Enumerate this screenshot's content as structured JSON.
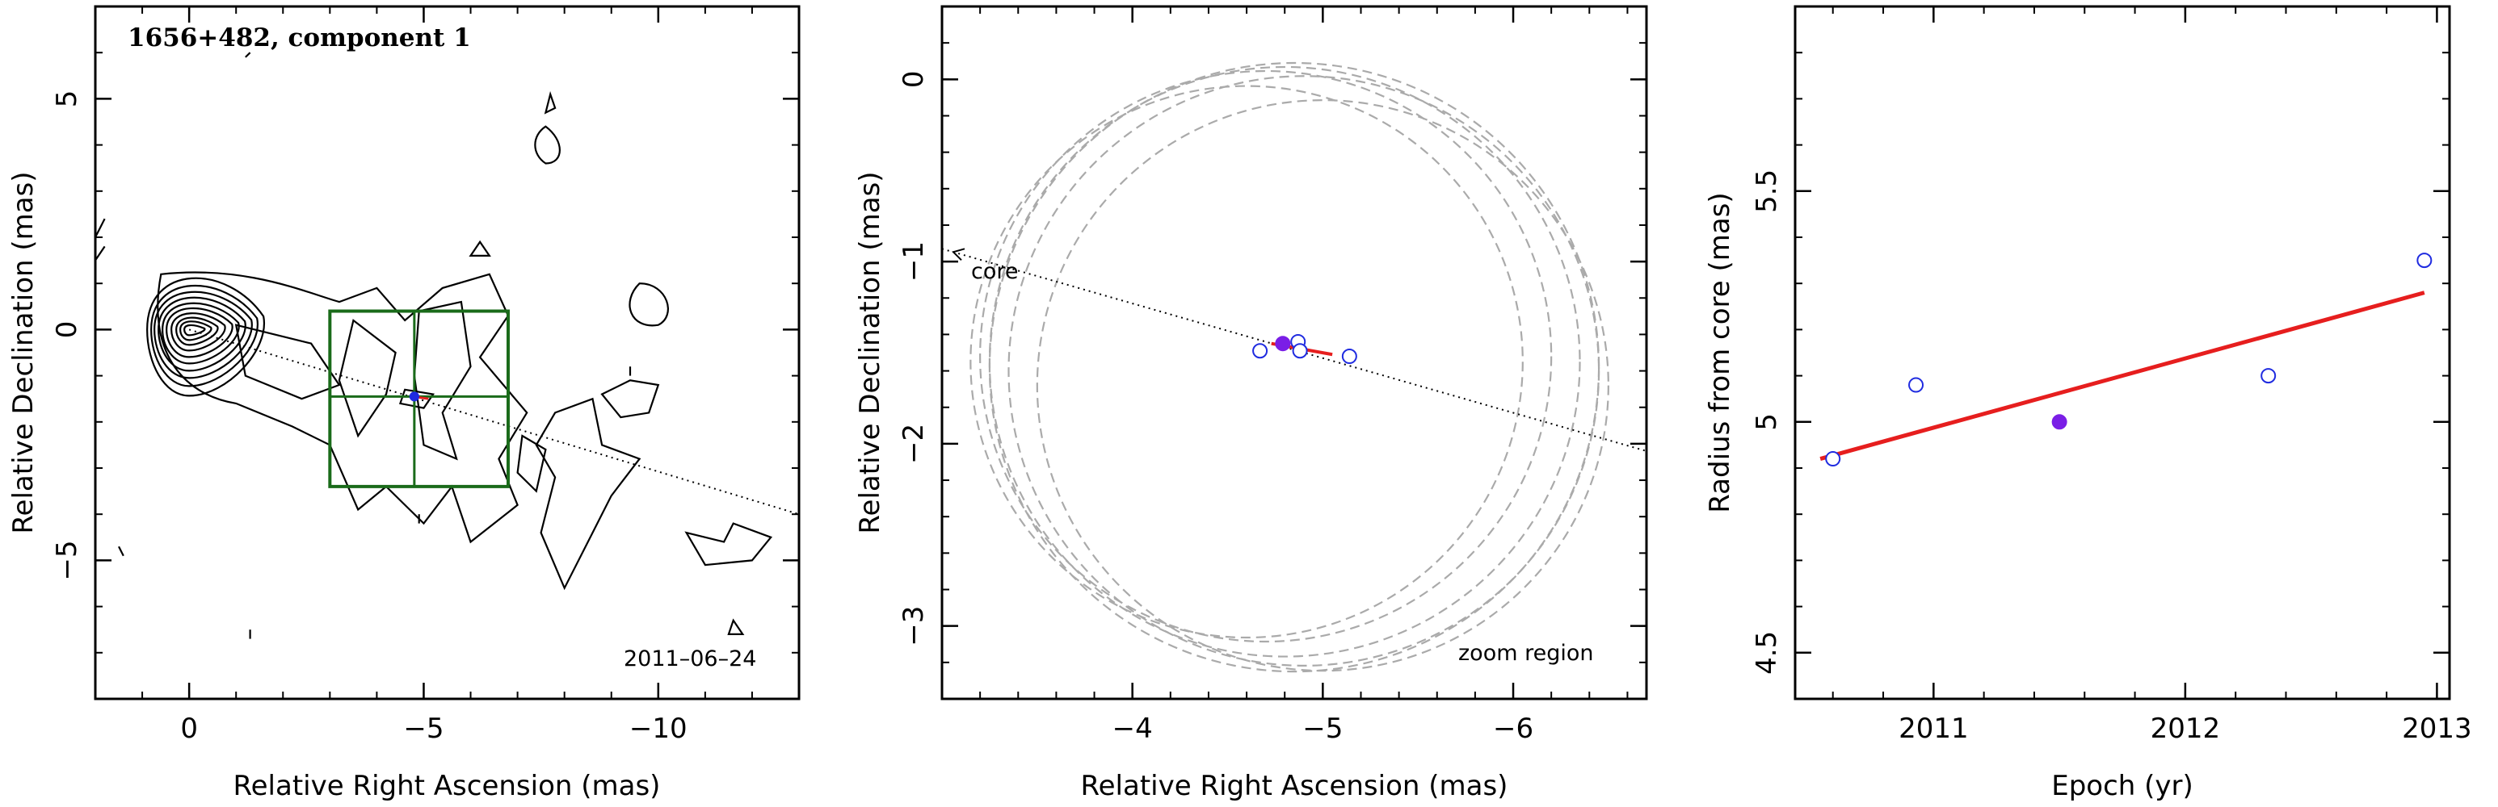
{
  "colors": {
    "contour": "#000000",
    "box": "#1a6b1a",
    "open_marker": "#1f2be0",
    "filled_marker": "#7a1ee6",
    "fit_line": "#e61e1e",
    "circle": "#aaaaaa"
  },
  "chart_data": [
    {
      "type": "contour",
      "title": "1656+482, component 1",
      "annotation": "2011–06–24",
      "xlabel": "Relative Right Ascension (mas)",
      "ylabel": "Relative Declination (mas)",
      "xlim": [
        2,
        -13
      ],
      "ylim": [
        -8,
        7
      ],
      "x_ticks": [
        0,
        -5,
        -10
      ],
      "x_tick_labels": [
        "0",
        "−5",
        "−10"
      ],
      "y_ticks": [
        5,
        0,
        -5
      ],
      "y_tick_labels": [
        "5",
        "0",
        "−5"
      ],
      "zoom_box": {
        "x": [
          -3.0,
          -6.8
        ],
        "y": [
          0.4,
          -3.4
        ]
      },
      "zoom_box_cross": {
        "x": -4.8,
        "y": -1.45
      },
      "direction_line": {
        "from": [
          0,
          0
        ],
        "to": [
          -13,
          -4.0
        ]
      },
      "component": {
        "x": -4.8,
        "y": -1.45,
        "fit_x": [
          -4.7,
          -5.1
        ],
        "fit_y": [
          -1.44,
          -1.5
        ]
      }
    },
    {
      "type": "scatter",
      "annotation_core": "core",
      "annotation_zoom": "zoom region",
      "xlabel": "Relative Right Ascension (mas)",
      "ylabel": "Relative Declination (mas)",
      "xlim": [
        -3.0,
        -6.7
      ],
      "ylim": [
        -3.4,
        0.4
      ],
      "x_ticks": [
        -4,
        -5,
        -6
      ],
      "x_tick_labels": [
        "−4",
        "−5",
        "−6"
      ],
      "y_ticks": [
        0,
        -1,
        -2,
        -3
      ],
      "y_tick_labels": [
        "0",
        "−1",
        "−2",
        "−3"
      ],
      "direction_line": {
        "from": [
          -3.0,
          -0.93
        ],
        "to": [
          -6.7,
          -2.04
        ]
      },
      "open_points": {
        "x": [
          -4.67,
          -4.87,
          -4.88,
          -5.14
        ],
        "y": [
          -1.49,
          -1.44,
          -1.49,
          -1.52
        ]
      },
      "filled_points": {
        "x": [
          -4.79
        ],
        "y": [
          -1.45
        ]
      },
      "fit_line": {
        "x": [
          -4.73,
          -5.05
        ],
        "y": [
          -1.45,
          -1.51
        ]
      },
      "circles": [
        {
          "cx": -4.6,
          "cy": -1.55,
          "r": 1.45
        },
        {
          "cx": -4.7,
          "cy": -1.52,
          "r": 1.5
        },
        {
          "cx": -4.8,
          "cy": -1.55,
          "r": 1.55
        },
        {
          "cx": -4.85,
          "cy": -1.58,
          "r": 1.6
        },
        {
          "cx": -4.9,
          "cy": -1.6,
          "r": 1.55
        },
        {
          "cx": -5.0,
          "cy": -1.68,
          "r": 1.5
        }
      ]
    },
    {
      "type": "scatter",
      "xlabel": "Epoch (yr)",
      "ylabel": "Radius from core (mas)",
      "xlim": [
        2010.45,
        2013.05
      ],
      "ylim": [
        4.4,
        5.9
      ],
      "x_ticks": [
        2011,
        2012,
        2013
      ],
      "x_tick_labels": [
        "2011",
        "2012",
        "2013"
      ],
      "y_ticks": [
        4.5,
        5,
        5.5
      ],
      "y_tick_labels": [
        "4.5",
        "5",
        "5.5"
      ],
      "open_points": {
        "x": [
          2010.6,
          2010.93,
          2012.33,
          2012.95
        ],
        "y": [
          4.92,
          5.08,
          5.1,
          5.35
        ]
      },
      "filled_points": {
        "x": [
          2011.5
        ],
        "y": [
          5.0
        ]
      },
      "fit_line": {
        "x": [
          2010.55,
          2012.95
        ],
        "y": [
          4.92,
          5.28
        ]
      }
    }
  ]
}
